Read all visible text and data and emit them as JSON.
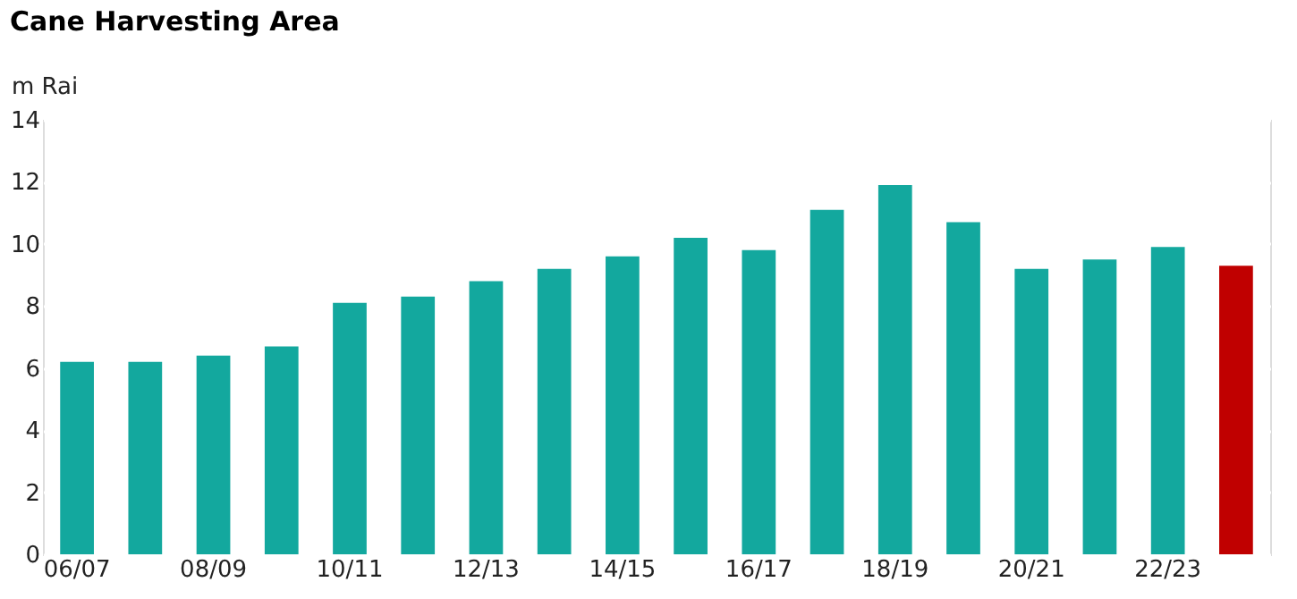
{
  "chart_data": {
    "type": "bar",
    "title": "Cane Harvesting Area",
    "ylabel": "m Rai",
    "categories": [
      "06/07",
      null,
      "08/09",
      null,
      "10/11",
      null,
      "12/13",
      null,
      "14/15",
      null,
      "16/17",
      null,
      "18/19",
      null,
      "20/21",
      null,
      "22/23",
      null
    ],
    "values": [
      6.2,
      6.2,
      6.4,
      6.7,
      8.1,
      8.3,
      8.8,
      9.2,
      9.6,
      10.2,
      9.8,
      11.1,
      11.9,
      10.7,
      9.2,
      9.5,
      9.9,
      9.3
    ],
    "colors": [
      "#13a89e",
      "#13a89e",
      "#13a89e",
      "#13a89e",
      "#13a89e",
      "#13a89e",
      "#13a89e",
      "#13a89e",
      "#13a89e",
      "#13a89e",
      "#13a89e",
      "#13a89e",
      "#13a89e",
      "#13a89e",
      "#13a89e",
      "#13a89e",
      "#13a89e",
      "#c00000"
    ],
    "ylim": [
      0,
      14
    ],
    "yticks": [
      0,
      2,
      4,
      6,
      8,
      10,
      12,
      14
    ],
    "grid": "y"
  }
}
